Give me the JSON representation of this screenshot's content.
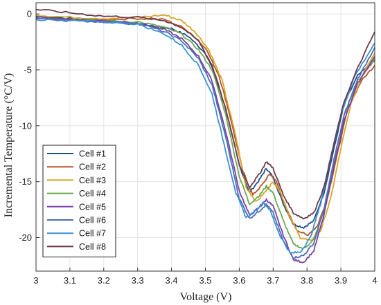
{
  "chart_data": {
    "type": "line",
    "xlabel": "Voltage (V)",
    "ylabel": "Incremental Temperature (°C/V)",
    "xlim": [
      3,
      4
    ],
    "ylim": [
      -23,
      1
    ],
    "x_ticks": [
      "3",
      "3.1",
      "3.2",
      "3.3",
      "3.4",
      "3.5",
      "3.6",
      "3.7",
      "3.8",
      "3.9",
      "4"
    ],
    "y_ticks": [
      "0",
      "-5",
      "-10",
      "-15",
      "-20"
    ],
    "grid": true,
    "legend_position": "bottom-left",
    "series": [
      {
        "name": "Cell #1",
        "color": "#1f4f8f",
        "points": [
          [
            3.0,
            -0.2
          ],
          [
            3.1,
            -0.4
          ],
          [
            3.2,
            -0.7
          ],
          [
            3.3,
            -0.9
          ],
          [
            3.35,
            -1.1
          ],
          [
            3.4,
            -1.3
          ],
          [
            3.45,
            -2.0
          ],
          [
            3.5,
            -3.5
          ],
          [
            3.53,
            -5.5
          ],
          [
            3.56,
            -8.5
          ],
          [
            3.6,
            -13.5
          ],
          [
            3.63,
            -16.0
          ],
          [
            3.66,
            -14.8
          ],
          [
            3.68,
            -13.8
          ],
          [
            3.7,
            -14.6
          ],
          [
            3.73,
            -17.0
          ],
          [
            3.76,
            -18.8
          ],
          [
            3.79,
            -19.1
          ],
          [
            3.82,
            -18.5
          ],
          [
            3.85,
            -16.0
          ],
          [
            3.88,
            -12.0
          ],
          [
            3.91,
            -8.0
          ],
          [
            3.95,
            -5.5
          ],
          [
            4.0,
            -4.2
          ]
        ]
      },
      {
        "name": "Cell #2",
        "color": "#b5542b",
        "points": [
          [
            3.0,
            -0.4
          ],
          [
            3.1,
            -0.5
          ],
          [
            3.2,
            -0.5
          ],
          [
            3.3,
            -0.4
          ],
          [
            3.38,
            -0.5
          ],
          [
            3.44,
            -1.3
          ],
          [
            3.5,
            -3.0
          ],
          [
            3.54,
            -5.5
          ],
          [
            3.57,
            -8.8
          ],
          [
            3.61,
            -14.0
          ],
          [
            3.64,
            -16.2
          ],
          [
            3.67,
            -15.2
          ],
          [
            3.69,
            -14.3
          ],
          [
            3.71,
            -15.0
          ],
          [
            3.74,
            -17.5
          ],
          [
            3.77,
            -19.3
          ],
          [
            3.8,
            -19.8
          ],
          [
            3.83,
            -19.0
          ],
          [
            3.86,
            -16.5
          ],
          [
            3.89,
            -12.5
          ],
          [
            3.92,
            -8.5
          ],
          [
            3.96,
            -6.0
          ],
          [
            4.0,
            -4.6
          ]
        ]
      },
      {
        "name": "Cell #3",
        "color": "#d9a521",
        "points": [
          [
            3.0,
            -0.1
          ],
          [
            3.1,
            -0.3
          ],
          [
            3.2,
            -0.4
          ],
          [
            3.3,
            -0.3
          ],
          [
            3.38,
            -0.1
          ],
          [
            3.43,
            -0.6
          ],
          [
            3.47,
            -1.6
          ],
          [
            3.51,
            -3.2
          ],
          [
            3.55,
            -6.0
          ],
          [
            3.59,
            -11.0
          ],
          [
            3.62,
            -15.5
          ],
          [
            3.65,
            -16.8
          ],
          [
            3.68,
            -15.8
          ],
          [
            3.7,
            -15.0
          ],
          [
            3.72,
            -15.8
          ],
          [
            3.75,
            -18.2
          ],
          [
            3.78,
            -20.0
          ],
          [
            3.81,
            -20.3
          ],
          [
            3.84,
            -19.4
          ],
          [
            3.87,
            -16.5
          ],
          [
            3.9,
            -12.0
          ],
          [
            3.93,
            -8.0
          ],
          [
            3.97,
            -5.0
          ],
          [
            4.0,
            -3.5
          ]
        ]
      },
      {
        "name": "Cell #4",
        "color": "#6aa84f",
        "points": [
          [
            3.0,
            -0.3
          ],
          [
            3.1,
            -0.5
          ],
          [
            3.2,
            -0.6
          ],
          [
            3.3,
            -0.7
          ],
          [
            3.38,
            -1.2
          ],
          [
            3.43,
            -1.8
          ],
          [
            3.48,
            -3.2
          ],
          [
            3.52,
            -5.0
          ],
          [
            3.56,
            -9.0
          ],
          [
            3.6,
            -14.5
          ],
          [
            3.63,
            -17.0
          ],
          [
            3.66,
            -16.2
          ],
          [
            3.68,
            -15.4
          ],
          [
            3.7,
            -16.0
          ],
          [
            3.73,
            -18.5
          ],
          [
            3.76,
            -20.6
          ],
          [
            3.79,
            -21.0
          ],
          [
            3.82,
            -20.2
          ],
          [
            3.85,
            -17.5
          ],
          [
            3.88,
            -13.0
          ],
          [
            3.91,
            -9.0
          ],
          [
            3.95,
            -6.0
          ],
          [
            4.0,
            -4.0
          ]
        ]
      },
      {
        "name": "Cell #5",
        "color": "#7a3fa8",
        "points": [
          [
            3.0,
            -0.3
          ],
          [
            3.1,
            -0.5
          ],
          [
            3.2,
            -0.6
          ],
          [
            3.3,
            -0.8
          ],
          [
            3.38,
            -1.4
          ],
          [
            3.43,
            -2.2
          ],
          [
            3.48,
            -3.8
          ],
          [
            3.52,
            -6.0
          ],
          [
            3.56,
            -10.5
          ],
          [
            3.6,
            -15.8
          ],
          [
            3.63,
            -18.0
          ],
          [
            3.66,
            -17.3
          ],
          [
            3.68,
            -16.6
          ],
          [
            3.7,
            -17.2
          ],
          [
            3.73,
            -19.8
          ],
          [
            3.76,
            -22.0
          ],
          [
            3.79,
            -22.2
          ],
          [
            3.82,
            -21.2
          ],
          [
            3.85,
            -18.0
          ],
          [
            3.88,
            -13.5
          ],
          [
            3.91,
            -9.5
          ],
          [
            3.95,
            -6.2
          ],
          [
            4.0,
            -3.8
          ]
        ]
      },
      {
        "name": "Cell #6",
        "color": "#4a6fb5",
        "points": [
          [
            3.0,
            -0.4
          ],
          [
            3.1,
            -0.6
          ],
          [
            3.2,
            -0.7
          ],
          [
            3.3,
            -0.8
          ],
          [
            3.38,
            -1.6
          ],
          [
            3.43,
            -2.4
          ],
          [
            3.48,
            -4.0
          ],
          [
            3.52,
            -6.4
          ],
          [
            3.56,
            -11.0
          ],
          [
            3.6,
            -16.5
          ],
          [
            3.63,
            -18.3
          ],
          [
            3.66,
            -17.6
          ],
          [
            3.68,
            -17.0
          ],
          [
            3.7,
            -17.8
          ],
          [
            3.73,
            -20.3
          ],
          [
            3.76,
            -21.8
          ],
          [
            3.79,
            -21.6
          ],
          [
            3.82,
            -20.5
          ],
          [
            3.85,
            -17.5
          ],
          [
            3.88,
            -13.0
          ],
          [
            3.91,
            -9.0
          ],
          [
            3.95,
            -5.8
          ],
          [
            4.0,
            -3.0
          ]
        ]
      },
      {
        "name": "Cell #7",
        "color": "#3c8fd4",
        "points": [
          [
            3.0,
            -0.5
          ],
          [
            3.1,
            -0.6
          ],
          [
            3.2,
            -0.7
          ],
          [
            3.3,
            -0.9
          ],
          [
            3.38,
            -1.8
          ],
          [
            3.43,
            -2.8
          ],
          [
            3.48,
            -4.6
          ],
          [
            3.52,
            -7.2
          ],
          [
            3.55,
            -11.0
          ],
          [
            3.59,
            -16.0
          ],
          [
            3.62,
            -18.2
          ],
          [
            3.65,
            -17.6
          ],
          [
            3.67,
            -16.8
          ],
          [
            3.69,
            -17.5
          ],
          [
            3.72,
            -19.8
          ],
          [
            3.75,
            -21.4
          ],
          [
            3.78,
            -21.3
          ],
          [
            3.81,
            -20.0
          ],
          [
            3.84,
            -17.0
          ],
          [
            3.87,
            -12.8
          ],
          [
            3.9,
            -9.0
          ],
          [
            3.94,
            -5.6
          ],
          [
            4.0,
            -2.6
          ]
        ]
      },
      {
        "name": "Cell #8",
        "color": "#6b3a4a",
        "points": [
          [
            3.0,
            0.4
          ],
          [
            3.1,
            0.1
          ],
          [
            3.2,
            -0.2
          ],
          [
            3.3,
            -0.3
          ],
          [
            3.38,
            -0.6
          ],
          [
            3.43,
            -1.2
          ],
          [
            3.48,
            -2.4
          ],
          [
            3.52,
            -4.6
          ],
          [
            3.56,
            -8.5
          ],
          [
            3.6,
            -13.5
          ],
          [
            3.63,
            -15.5
          ],
          [
            3.66,
            -14.3
          ],
          [
            3.68,
            -13.2
          ],
          [
            3.7,
            -13.8
          ],
          [
            3.73,
            -16.2
          ],
          [
            3.76,
            -17.8
          ],
          [
            3.79,
            -18.3
          ],
          [
            3.82,
            -17.8
          ],
          [
            3.85,
            -15.5
          ],
          [
            3.88,
            -11.5
          ],
          [
            3.91,
            -7.8
          ],
          [
            3.95,
            -4.8
          ],
          [
            4.0,
            -1.6
          ]
        ]
      }
    ]
  }
}
